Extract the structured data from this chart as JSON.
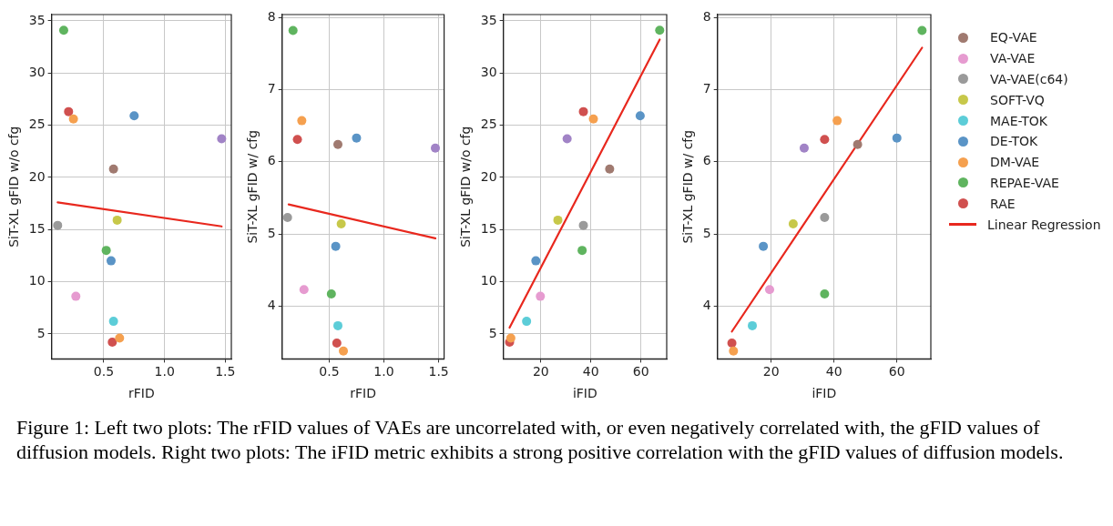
{
  "chart_data": [
    {
      "type": "scatter",
      "xlabel": "rFID",
      "ylabel": "SiT-XL gFID w/o cfg",
      "xlim": [
        0.07,
        1.55
      ],
      "ylim": [
        2.6,
        35.6
      ],
      "xticks": [
        {
          "value": 0.5,
          "label": "0.5"
        },
        {
          "value": 1,
          "label": "1.0"
        },
        {
          "value": 1.5,
          "label": "1.5"
        }
      ],
      "yticks": [
        5,
        10,
        15,
        20,
        25,
        30,
        35
      ],
      "grid": true,
      "legend": false,
      "marker": "circle",
      "annotations": [
        "Figure 1: Left two plots: The rFID values of VAEs are uncorrelated with, or even negatively correlated with, the gFID values of diffusion models. Right two plots: The iFID metric exhibits a strong positive correlation with the gFID values of diffusion models."
      ],
      "series": [
        {
          "color": "#5a94c6",
          "x": [
            0.75
          ],
          "values": [
            25.9
          ]
        },
        {
          "color": "#f5a04f",
          "x": [
            0.25
          ],
          "values": [
            25.6
          ]
        },
        {
          "color": "#5fb45f",
          "x": [
            0.17
          ],
          "values": [
            34.1
          ]
        },
        {
          "color": "#d0504f",
          "x": [
            0.21
          ],
          "values": [
            26.3
          ]
        },
        {
          "color": "#a183c6",
          "x": [
            1.47
          ],
          "values": [
            23.7
          ]
        },
        {
          "color": "#a07a70",
          "x": [
            0.58
          ],
          "values": [
            20.8
          ]
        },
        {
          "color": "#e69bd0",
          "x": [
            0.27
          ],
          "values": [
            8.6
          ]
        },
        {
          "color": "#9a9a9a",
          "x": [
            0.12
          ],
          "values": [
            15.4
          ]
        },
        {
          "color": "#c7c84a",
          "x": [
            0.61
          ],
          "values": [
            15.9
          ]
        },
        {
          "color": "#5ccdd8",
          "x": [
            0.58
          ],
          "values": [
            6.2
          ]
        },
        {
          "color": "#5a94c6",
          "x": [
            0.56
          ],
          "values": [
            12.0
          ]
        },
        {
          "color": "#f5a04f",
          "x": [
            0.63
          ],
          "values": [
            4.6
          ]
        },
        {
          "color": "#5fb45f",
          "x": [
            0.52
          ],
          "values": [
            13.0
          ]
        },
        {
          "color": "#d0504f",
          "x": [
            0.57
          ],
          "values": [
            4.2
          ]
        },
        {
          "type": "line",
          "marker": "none",
          "color": "#e8281e",
          "x": [
            0.12,
            1.47
          ],
          "values": [
            17.6,
            15.3
          ]
        }
      ]
    },
    {
      "type": "scatter",
      "xlabel": "rFID",
      "ylabel": "SiT-XL gFID w/ cfg",
      "xlim": [
        0.07,
        1.55
      ],
      "ylim": [
        3.27,
        8.04
      ],
      "xticks": [
        {
          "value": 0.5,
          "label": "0.5"
        },
        {
          "value": 1,
          "label": "1.0"
        },
        {
          "value": 1.5,
          "label": "1.5"
        }
      ],
      "yticks": [
        4,
        5,
        6,
        7,
        8
      ],
      "grid": true,
      "legend": false,
      "marker": "circle",
      "series": [
        {
          "color": "#5a94c6",
          "x": [
            0.75
          ],
          "values": [
            6.33
          ]
        },
        {
          "color": "#f5a04f",
          "x": [
            0.25
          ],
          "values": [
            6.57
          ]
        },
        {
          "color": "#5fb45f",
          "x": [
            0.17
          ],
          "values": [
            7.82
          ]
        },
        {
          "color": "#d0504f",
          "x": [
            0.21
          ],
          "values": [
            6.31
          ]
        },
        {
          "color": "#a183c6",
          "x": [
            1.47
          ],
          "values": [
            6.19
          ]
        },
        {
          "color": "#a07a70",
          "x": [
            0.58
          ],
          "values": [
            6.24
          ]
        },
        {
          "color": "#e69bd0",
          "x": [
            0.27
          ],
          "values": [
            4.23
          ]
        },
        {
          "color": "#9a9a9a",
          "x": [
            0.12
          ],
          "values": [
            5.23
          ]
        },
        {
          "color": "#c7c84a",
          "x": [
            0.61
          ],
          "values": [
            5.14
          ]
        },
        {
          "color": "#5ccdd8",
          "x": [
            0.58
          ],
          "values": [
            3.73
          ]
        },
        {
          "color": "#5a94c6",
          "x": [
            0.56
          ],
          "values": [
            4.83
          ]
        },
        {
          "color": "#f5a04f",
          "x": [
            0.63
          ],
          "values": [
            3.38
          ]
        },
        {
          "color": "#5fb45f",
          "x": [
            0.52
          ],
          "values": [
            4.17
          ]
        },
        {
          "color": "#d0504f",
          "x": [
            0.57
          ],
          "values": [
            3.49
          ]
        },
        {
          "type": "line",
          "marker": "none",
          "color": "#e8281e",
          "x": [
            0.13,
            1.47
          ],
          "values": [
            5.41,
            4.94
          ]
        }
      ]
    },
    {
      "type": "scatter",
      "xlabel": "iFID",
      "ylabel": "SiT-XL gFID w/o cfg",
      "xlim": [
        5,
        70.3
      ],
      "ylim": [
        2.6,
        35.6
      ],
      "xticks": [
        20,
        40,
        60
      ],
      "yticks": [
        5,
        10,
        15,
        20,
        25,
        30,
        35
      ],
      "grid": true,
      "legend": false,
      "marker": "circle",
      "series": [
        {
          "color": "#5a94c6",
          "x": [
            59.7
          ],
          "values": [
            25.9
          ]
        },
        {
          "color": "#f5a04f",
          "x": [
            41
          ],
          "values": [
            25.6
          ]
        },
        {
          "color": "#5fb45f",
          "x": [
            67.5
          ],
          "values": [
            34.1
          ]
        },
        {
          "color": "#d0504f",
          "x": [
            37
          ],
          "values": [
            26.3
          ]
        },
        {
          "color": "#a183c6",
          "x": [
            30.5
          ],
          "values": [
            23.7
          ]
        },
        {
          "color": "#a07a70",
          "x": [
            47.5
          ],
          "values": [
            20.8
          ]
        },
        {
          "color": "#e69bd0",
          "x": [
            19.8
          ],
          "values": [
            8.6
          ]
        },
        {
          "color": "#9a9a9a",
          "x": [
            37
          ],
          "values": [
            15.4
          ]
        },
        {
          "color": "#c7c84a",
          "x": [
            26.8
          ],
          "values": [
            15.9
          ]
        },
        {
          "color": "#5ccdd8",
          "x": [
            14.3
          ],
          "values": [
            6.2
          ]
        },
        {
          "color": "#5a94c6",
          "x": [
            18
          ],
          "values": [
            12.0
          ]
        },
        {
          "color": "#f5a04f",
          "x": [
            8
          ],
          "values": [
            4.6
          ]
        },
        {
          "color": "#5fb45f",
          "x": [
            36.5
          ],
          "values": [
            13.0
          ]
        },
        {
          "color": "#d0504f",
          "x": [
            7.5
          ],
          "values": [
            4.2
          ]
        },
        {
          "type": "line",
          "marker": "none",
          "color": "#e8281e",
          "x": [
            7.5,
            67.5
          ],
          "values": [
            5.6,
            33.2
          ]
        }
      ]
    },
    {
      "type": "scatter",
      "xlabel": "iFID",
      "ylabel": "SiT-XL gFID w/ cfg",
      "xlim": [
        2.9,
        70.8
      ],
      "ylim": [
        3.27,
        8.04
      ],
      "xticks": [
        20,
        40,
        60
      ],
      "yticks": [
        4,
        5,
        6,
        7,
        8
      ],
      "grid": true,
      "legend": "right",
      "marker": "circle",
      "series": [
        {
          "color": "#5a94c6",
          "x": [
            60
          ],
          "values": [
            6.33
          ]
        },
        {
          "color": "#f5a04f",
          "x": [
            41
          ],
          "values": [
            6.57
          ]
        },
        {
          "color": "#5fb45f",
          "x": [
            68
          ],
          "values": [
            7.82
          ]
        },
        {
          "color": "#d0504f",
          "x": [
            37
          ],
          "values": [
            6.31
          ]
        },
        {
          "color": "#a183c6",
          "x": [
            30.5
          ],
          "values": [
            6.19
          ]
        },
        {
          "name": "EQ-VAE",
          "color": "#a07a70",
          "x": [
            47.5
          ],
          "values": [
            6.24
          ]
        },
        {
          "name": "VA-VAE",
          "color": "#e69bd0",
          "x": [
            19.5
          ],
          "values": [
            4.23
          ]
        },
        {
          "name": "VA-VAE(c64)",
          "color": "#9a9a9a",
          "x": [
            37
          ],
          "values": [
            5.23
          ]
        },
        {
          "name": "SOFT-VQ",
          "color": "#c7c84a",
          "x": [
            27
          ],
          "values": [
            5.14
          ]
        },
        {
          "name": "MAE-TOK",
          "color": "#5ccdd8",
          "x": [
            14
          ],
          "values": [
            3.73
          ]
        },
        {
          "name": "DE-TOK",
          "color": "#5a94c6",
          "x": [
            17.5
          ],
          "values": [
            4.83
          ]
        },
        {
          "name": "DM-VAE",
          "color": "#f5a04f",
          "x": [
            8
          ],
          "values": [
            3.38
          ]
        },
        {
          "name": "REPAE-VAE",
          "color": "#5fb45f",
          "x": [
            37
          ],
          "values": [
            4.17
          ]
        },
        {
          "name": "RAE",
          "color": "#d0504f",
          "x": [
            7.5
          ],
          "values": [
            3.49
          ]
        },
        {
          "name": "Linear Regression",
          "type": "line",
          "marker": "none",
          "color": "#e8281e",
          "x": [
            7.5,
            68
          ],
          "values": [
            3.65,
            7.58
          ]
        }
      ]
    }
  ]
}
